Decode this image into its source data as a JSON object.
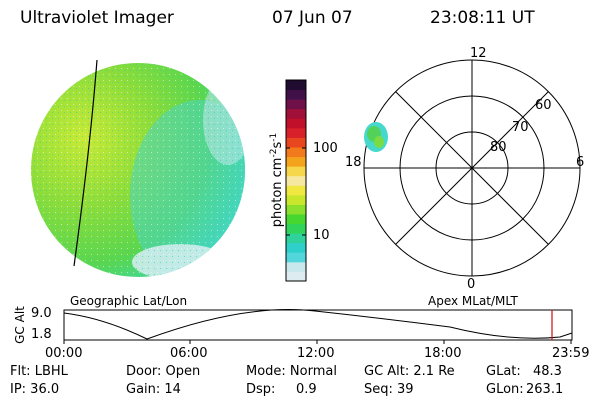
{
  "header": {
    "instrument": "Ultraviolet Imager",
    "date": "07 Jun 07",
    "time": "23:08:11 UT"
  },
  "colorbar": {
    "label_prefix": "photon cm",
    "label_exp1": "-2",
    "label_mid": "s",
    "label_exp2": "-1",
    "ticks": [
      "100",
      "10"
    ],
    "colors": [
      "#dcecf0",
      "#c8e8ee",
      "#52d6dc",
      "#2fd0cc",
      "#2fd29a",
      "#30d45a",
      "#46d830",
      "#8ae02c",
      "#c8e62c",
      "#f0e840",
      "#f6e8a0",
      "#f6d64a",
      "#f4a41c",
      "#f07a1c",
      "#e8461e",
      "#d8202a",
      "#c0102a",
      "#a01038",
      "#701048",
      "#401048",
      "#200c30"
    ]
  },
  "polar": {
    "mlt_labels": {
      "top": "12",
      "left": "18",
      "right": "6",
      "bottom": "0"
    },
    "lat_labels": [
      "60",
      "70",
      "80"
    ]
  },
  "captions": {
    "left": "Geographic Lat/Lon",
    "right": "Apex MLat/MLT"
  },
  "orbit": {
    "axis_label": "GC Alt",
    "y_ticks": [
      "9.0",
      "1.8"
    ],
    "x_ticks": [
      "00:00",
      "06:00",
      "12:00",
      "18:00",
      "23:59"
    ]
  },
  "info": {
    "flt": "Flt: LBHL",
    "ip": "IP: 36.0",
    "door": "Door: Open",
    "gain": "Gain: 14",
    "mode": "Mode: Normal",
    "dsp_label": "Dsp:",
    "dsp_value": "0.9",
    "gcalt": "GC Alt: 2.1 Re",
    "seq": "Seq: 39",
    "glat_label": "GLat:",
    "glat_value": "48.3",
    "glon_label": "GLon:",
    "glon_value": "263.1"
  }
}
